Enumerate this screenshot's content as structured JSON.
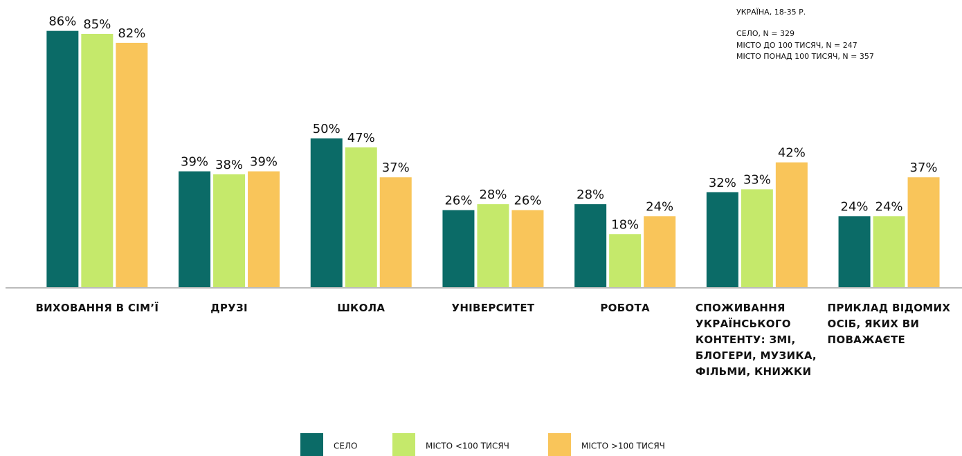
{
  "chart_data": {
    "type": "bar",
    "annotations": [
      "УКРАЇНА, 18-35 Р.",
      "СЕЛО, N = 329",
      "МІСТО ДО 100 ТИСЯЧ, N = 247",
      "МІСТО ПОНАД 100 ТИСЯЧ, N = 357"
    ],
    "categories": [
      "ВИХОВАННЯ В СІМ’Ї",
      "ДРУЗІ",
      "ШКОЛА",
      "УНІВЕРСИТЕТ",
      "РОБОТА",
      "СПОЖИВАННЯ УКРАЇНСЬКОГО КОНТЕНТУ: ЗМІ, БЛОГЕРИ, МУЗИКА, ФІЛЬМИ, КНИЖКИ",
      "ПРИКЛАД ВІДОМИХ ОСІБ, ЯКИХ ВИ ПОВАЖАЄТЕ"
    ],
    "series": [
      {
        "name": "СЕЛО",
        "color": "#0b6b67",
        "values": [
          86,
          39,
          50,
          26,
          28,
          32,
          24
        ],
        "value_labels": [
          "86%",
          "39%",
          "50%",
          "26%",
          "28%",
          "32%",
          "24%"
        ]
      },
      {
        "name": "МІСТО <100 ТИСЯЧ",
        "color": "#c5e96b",
        "values": [
          85,
          38,
          47,
          28,
          18,
          33,
          24
        ],
        "value_labels": [
          "85%",
          "38%",
          "47%",
          "28%",
          "18%",
          "33%",
          "24%"
        ]
      },
      {
        "name": "МІСТО >100 ТИСЯЧ",
        "color": "#f9c55a",
        "values": [
          82,
          39,
          37,
          26,
          24,
          42,
          37
        ],
        "value_labels": [
          "82%",
          "39%",
          "37%",
          "26%",
          "24%",
          "42%",
          "37%"
        ]
      }
    ],
    "ylim": [
      0,
      88
    ],
    "legend": "bottom"
  }
}
